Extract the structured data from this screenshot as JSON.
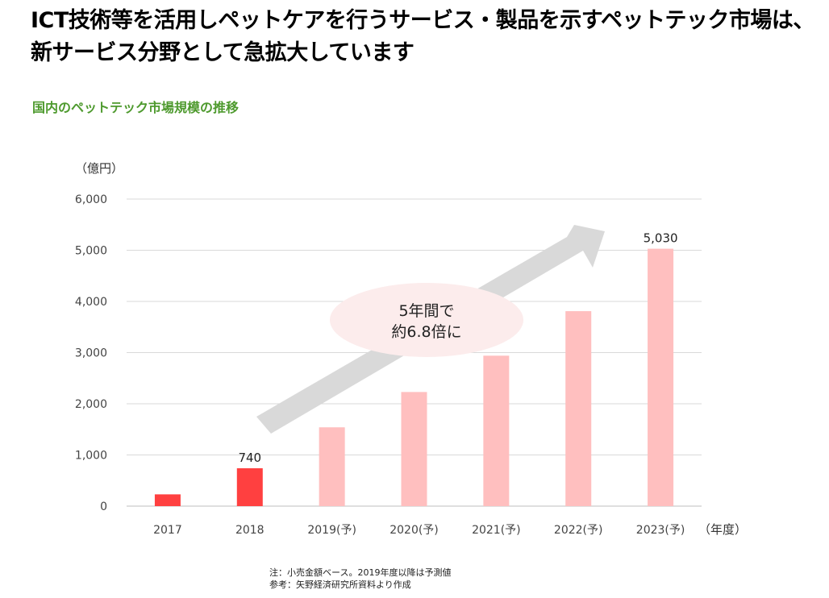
{
  "headline": {
    "line1": "ICT技術等を活用しペットケアを行うサービス・製品を示すペットテック市場は、",
    "line2": "新サービス分野として急拡大しています"
  },
  "subtitle": "国内のペットテック市場規模の推移",
  "notes": {
    "line1": "注：小売金額ベース。2019年度以降は予測値",
    "line2": "参考：矢野経済研究所資料より作成"
  },
  "colors": {
    "actual": "#ff4040",
    "forecast": "#ffbfbf",
    "arrow": "#d9d9d9",
    "bubble": "#fcecec",
    "subtitle": "#4e9a2e",
    "grid": "#d9d9d9"
  },
  "chart_data": {
    "type": "bar",
    "title": "国内のペットテック市場規模の推移",
    "ylabel": "（億円）",
    "xlabel": "（年度）",
    "ylim": [
      0,
      6000
    ],
    "yticks": [
      "0",
      "1,000",
      "2,000",
      "3,000",
      "4,000",
      "5,000",
      "6,000"
    ],
    "categories": [
      "2017",
      "2018",
      "2019(予)",
      "2020(予)",
      "2021(予)",
      "2022(予)",
      "2023(予)"
    ],
    "values": [
      230,
      740,
      1540,
      2230,
      2940,
      3810,
      5030
    ],
    "forecast": [
      false,
      false,
      true,
      true,
      true,
      true,
      true
    ],
    "data_labels": [
      "",
      "740",
      "",
      "",
      "",
      "",
      "5,030"
    ],
    "grid": true,
    "annotation": {
      "line1": "5年間で",
      "line2": "約6.8倍に"
    }
  }
}
